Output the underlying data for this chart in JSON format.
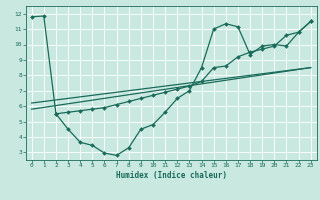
{
  "xlabel": "Humidex (Indice chaleur)",
  "xlim": [
    -0.5,
    23.5
  ],
  "ylim": [
    2.5,
    12.5
  ],
  "xticks": [
    0,
    1,
    2,
    3,
    4,
    5,
    6,
    7,
    8,
    9,
    10,
    11,
    12,
    13,
    14,
    15,
    16,
    17,
    18,
    19,
    20,
    21,
    22,
    23
  ],
  "yticks": [
    3,
    4,
    5,
    6,
    7,
    8,
    9,
    10,
    11,
    12
  ],
  "bg_color": "#c8e8e0",
  "grid_color": "#ffffff",
  "line_color": "#1a6b5a",
  "line1_x": [
    0,
    1,
    2,
    3,
    4,
    5,
    6,
    7,
    8,
    9,
    10,
    11,
    12,
    13,
    14,
    15,
    16,
    17,
    18,
    19,
    20,
    21,
    22,
    23
  ],
  "line1_y": [
    11.8,
    11.85,
    5.5,
    4.5,
    3.65,
    3.45,
    2.95,
    2.8,
    3.3,
    4.5,
    4.8,
    5.6,
    6.5,
    7.0,
    8.5,
    11.0,
    11.35,
    11.15,
    9.35,
    9.9,
    10.0,
    9.9,
    10.8,
    11.5
  ],
  "line2_x": [
    2,
    3,
    4,
    5,
    6,
    7,
    8,
    9,
    10,
    11,
    12,
    13,
    14,
    15,
    16,
    17,
    18,
    19,
    20,
    21,
    22,
    23
  ],
  "line2_y": [
    5.5,
    5.6,
    5.7,
    5.8,
    5.9,
    6.1,
    6.3,
    6.5,
    6.7,
    6.9,
    7.1,
    7.3,
    7.6,
    8.5,
    8.6,
    9.2,
    9.5,
    9.7,
    9.9,
    10.6,
    10.8,
    11.5
  ],
  "line3_x": [
    0,
    23
  ],
  "line3_y": [
    5.8,
    8.5
  ],
  "line4_x": [
    0,
    23
  ],
  "line4_y": [
    6.2,
    8.5
  ]
}
